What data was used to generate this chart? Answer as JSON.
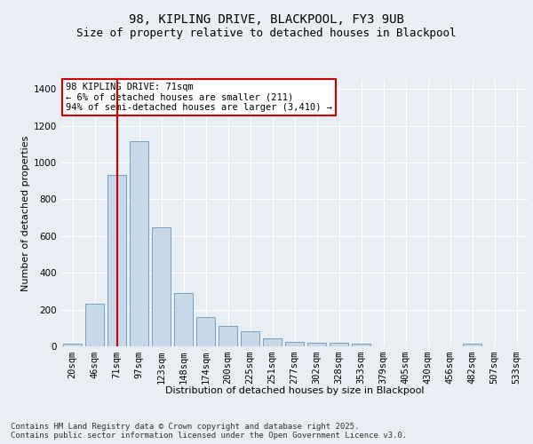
{
  "title_line1": "98, KIPLING DRIVE, BLACKPOOL, FY3 9UB",
  "title_line2": "Size of property relative to detached houses in Blackpool",
  "xlabel": "Distribution of detached houses by size in Blackpool",
  "ylabel": "Number of detached properties",
  "categories": [
    "20sqm",
    "46sqm",
    "71sqm",
    "97sqm",
    "123sqm",
    "148sqm",
    "174sqm",
    "200sqm",
    "225sqm",
    "251sqm",
    "277sqm",
    "302sqm",
    "328sqm",
    "353sqm",
    "379sqm",
    "405sqm",
    "430sqm",
    "456sqm",
    "482sqm",
    "507sqm",
    "533sqm"
  ],
  "values": [
    15,
    230,
    935,
    1115,
    650,
    290,
    160,
    110,
    80,
    45,
    25,
    20,
    20,
    15,
    0,
    0,
    0,
    0,
    15,
    0,
    0
  ],
  "bar_color": "#c8d8e8",
  "bar_edge_color": "#6699bb",
  "highlight_index": 2,
  "highlight_line_color": "#cc0000",
  "annotation_text": "98 KIPLING DRIVE: 71sqm\n← 6% of detached houses are smaller (211)\n94% of semi-detached houses are larger (3,410) →",
  "annotation_box_color": "#ffffff",
  "annotation_box_edge_color": "#cc0000",
  "ylim": [
    0,
    1450
  ],
  "yticks": [
    0,
    200,
    400,
    600,
    800,
    1000,
    1200,
    1400
  ],
  "background_color": "#e8eef4",
  "grid_color": "#ffffff",
  "footnote": "Contains HM Land Registry data © Crown copyright and database right 2025.\nContains public sector information licensed under the Open Government Licence v3.0.",
  "title_fontsize": 10,
  "subtitle_fontsize": 9,
  "axis_label_fontsize": 8,
  "tick_fontsize": 7.5,
  "annotation_fontsize": 7.5,
  "footnote_fontsize": 6.5
}
